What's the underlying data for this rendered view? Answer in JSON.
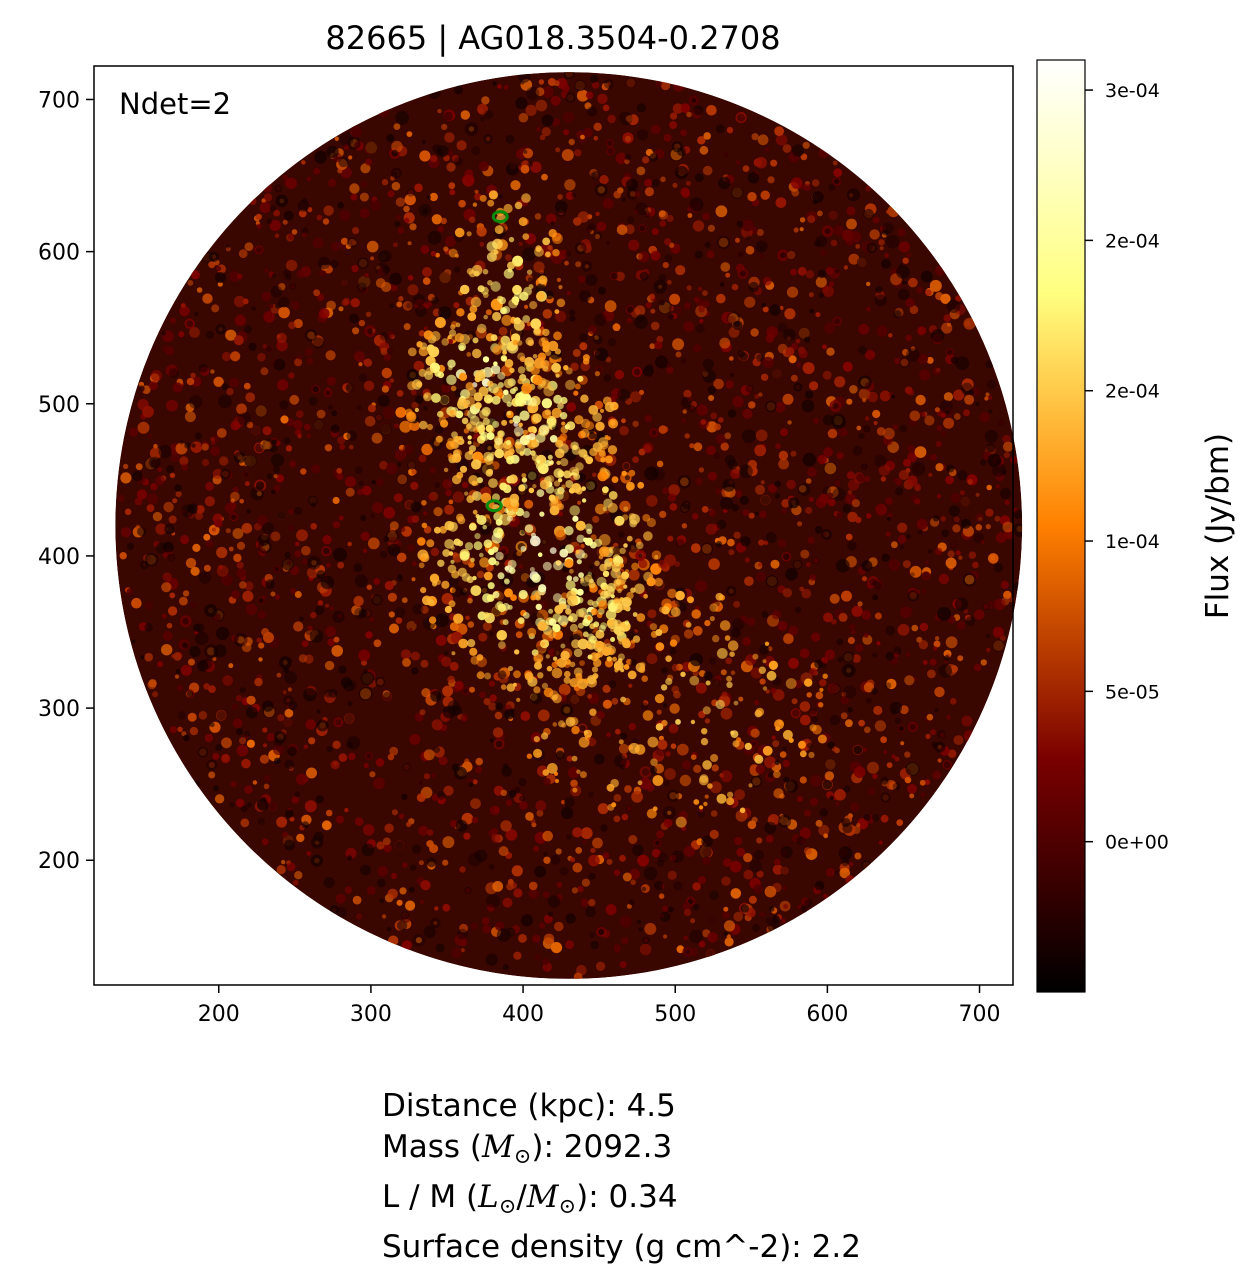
{
  "chart_data": {
    "type": "heatmap",
    "title": "82665 | AG018.3504-0.2708",
    "annotation": "Ndet=2",
    "xlim": [
      118,
      722
    ],
    "ylim": [
      118,
      722
    ],
    "x_ticks": [
      200,
      300,
      400,
      500,
      600,
      700
    ],
    "y_ticks": [
      200,
      300,
      400,
      500,
      600,
      700
    ],
    "field_of_view": {
      "shape": "circle",
      "center": [
        430,
        420
      ],
      "radius": 298
    },
    "colormap": "afmhot",
    "colorbar": {
      "label": "Flux (Jy/bm)",
      "range": [
        -5e-05,
        0.00026
      ],
      "ticks": [
        {
          "value": 0.0,
          "label": "0e+00"
        },
        {
          "value": 5e-05,
          "label": "5e-05"
        },
        {
          "value": 0.0001,
          "label": "1e-04"
        },
        {
          "value": 0.00015,
          "label": "2e-04"
        },
        {
          "value": 0.0002,
          "label": "2e-04"
        },
        {
          "value": 0.00025,
          "label": "3e-04"
        }
      ]
    },
    "detections": [
      {
        "x": 385,
        "y": 623,
        "color": "#0a8a0a"
      },
      {
        "x": 381,
        "y": 433,
        "color": "#0a8a0a"
      }
    ],
    "bright_regions": [
      {
        "x": 410,
        "y": 400,
        "rx": 60,
        "ry": 75,
        "strength": 0.85
      },
      {
        "x": 372,
        "y": 512,
        "rx": 40,
        "ry": 40,
        "strength": 0.8
      },
      {
        "x": 405,
        "y": 485,
        "rx": 45,
        "ry": 45,
        "strength": 0.75
      },
      {
        "x": 450,
        "y": 360,
        "rx": 35,
        "ry": 35,
        "strength": 0.5
      },
      {
        "x": 390,
        "y": 575,
        "rx": 30,
        "ry": 55,
        "strength": 0.45
      },
      {
        "x": 500,
        "y": 300,
        "rx": 80,
        "ry": 60,
        "strength": 0.25
      }
    ]
  },
  "stats": {
    "distance_label": "Distance (kpc): 4.5",
    "mass_prefix": "Mass (",
    "mass_symbol": "M",
    "mass_suffix": "): 2092.3",
    "lm_prefix": "L / M (",
    "lm_l_symbol": "L",
    "lm_slash": "/",
    "lm_m_symbol": "M",
    "lm_suffix": "): 0.34",
    "sun_symbol": "⊙",
    "surface_label": "Surface density (g cm^-2): 2.2"
  }
}
